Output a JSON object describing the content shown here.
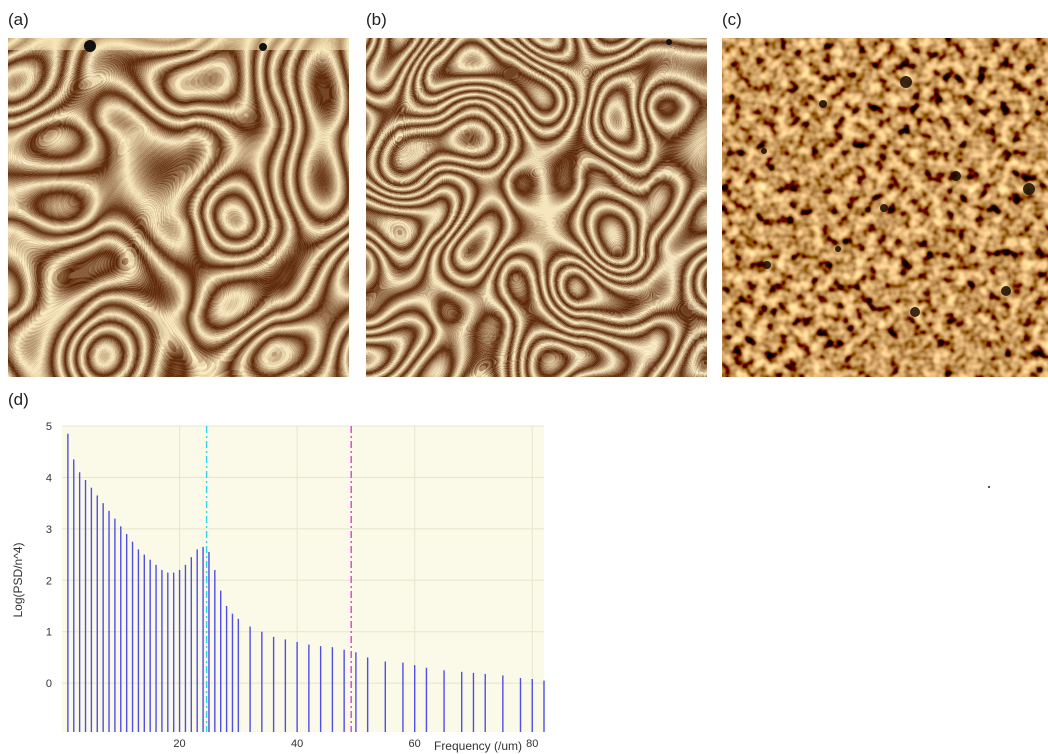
{
  "panels": {
    "a": {
      "label": "(a)"
    },
    "b": {
      "label": "(b)"
    },
    "c": {
      "label": "(c)"
    },
    "d": {
      "label": "(d)"
    }
  },
  "colors": {
    "afm_dark": "#4a1c00",
    "afm_mid": "#a8620f",
    "afm_light": "#f7dc8c",
    "plot_bg": "#fbfae8",
    "bar": "#4f4fe8",
    "line_cyan": "#2fd4ea",
    "line_magenta": "#e03cdc"
  },
  "chart_data": {
    "type": "bar",
    "ylabel": "Log(PSD/n^4)",
    "xlabel": "Frequency (/um)",
    "xlim": [
      0,
      82
    ],
    "ylim": [
      -0.95,
      5.0
    ],
    "x_ticks": [
      20,
      40,
      60,
      80
    ],
    "y_ticks": [
      0,
      1,
      2,
      3,
      4,
      5
    ],
    "grid": true,
    "reference_lines": [
      {
        "x": 24.6,
        "color": "#2fd4ea",
        "style": "dash-dot"
      },
      {
        "x": 49.2,
        "color": "#e03cdc",
        "style": "dash-dot"
      }
    ],
    "series": [
      {
        "x": [
          1,
          2,
          3,
          4,
          5,
          6,
          7,
          8,
          9,
          10,
          11,
          12,
          13,
          14,
          15,
          16,
          17,
          18,
          19,
          20,
          21,
          22,
          23,
          24,
          25,
          26,
          27,
          28,
          29,
          30,
          32,
          34,
          36,
          38,
          40,
          42,
          44,
          46,
          48,
          50,
          52,
          55,
          58,
          60,
          62,
          65,
          68,
          70,
          72,
          75,
          78,
          80,
          82
        ],
        "values": [
          4.85,
          4.35,
          4.1,
          3.95,
          3.8,
          3.65,
          3.5,
          3.35,
          3.2,
          3.05,
          2.9,
          2.75,
          2.6,
          2.5,
          2.4,
          2.3,
          2.2,
          2.15,
          2.15,
          2.2,
          2.3,
          2.45,
          2.6,
          2.65,
          2.55,
          2.2,
          1.8,
          1.5,
          1.35,
          1.25,
          1.1,
          1.0,
          0.9,
          0.85,
          0.8,
          0.75,
          0.72,
          0.7,
          0.65,
          0.6,
          0.5,
          0.42,
          0.4,
          0.35,
          0.3,
          0.25,
          0.22,
          0.2,
          0.18,
          0.15,
          0.1,
          0.08,
          0.05
        ]
      }
    ]
  }
}
